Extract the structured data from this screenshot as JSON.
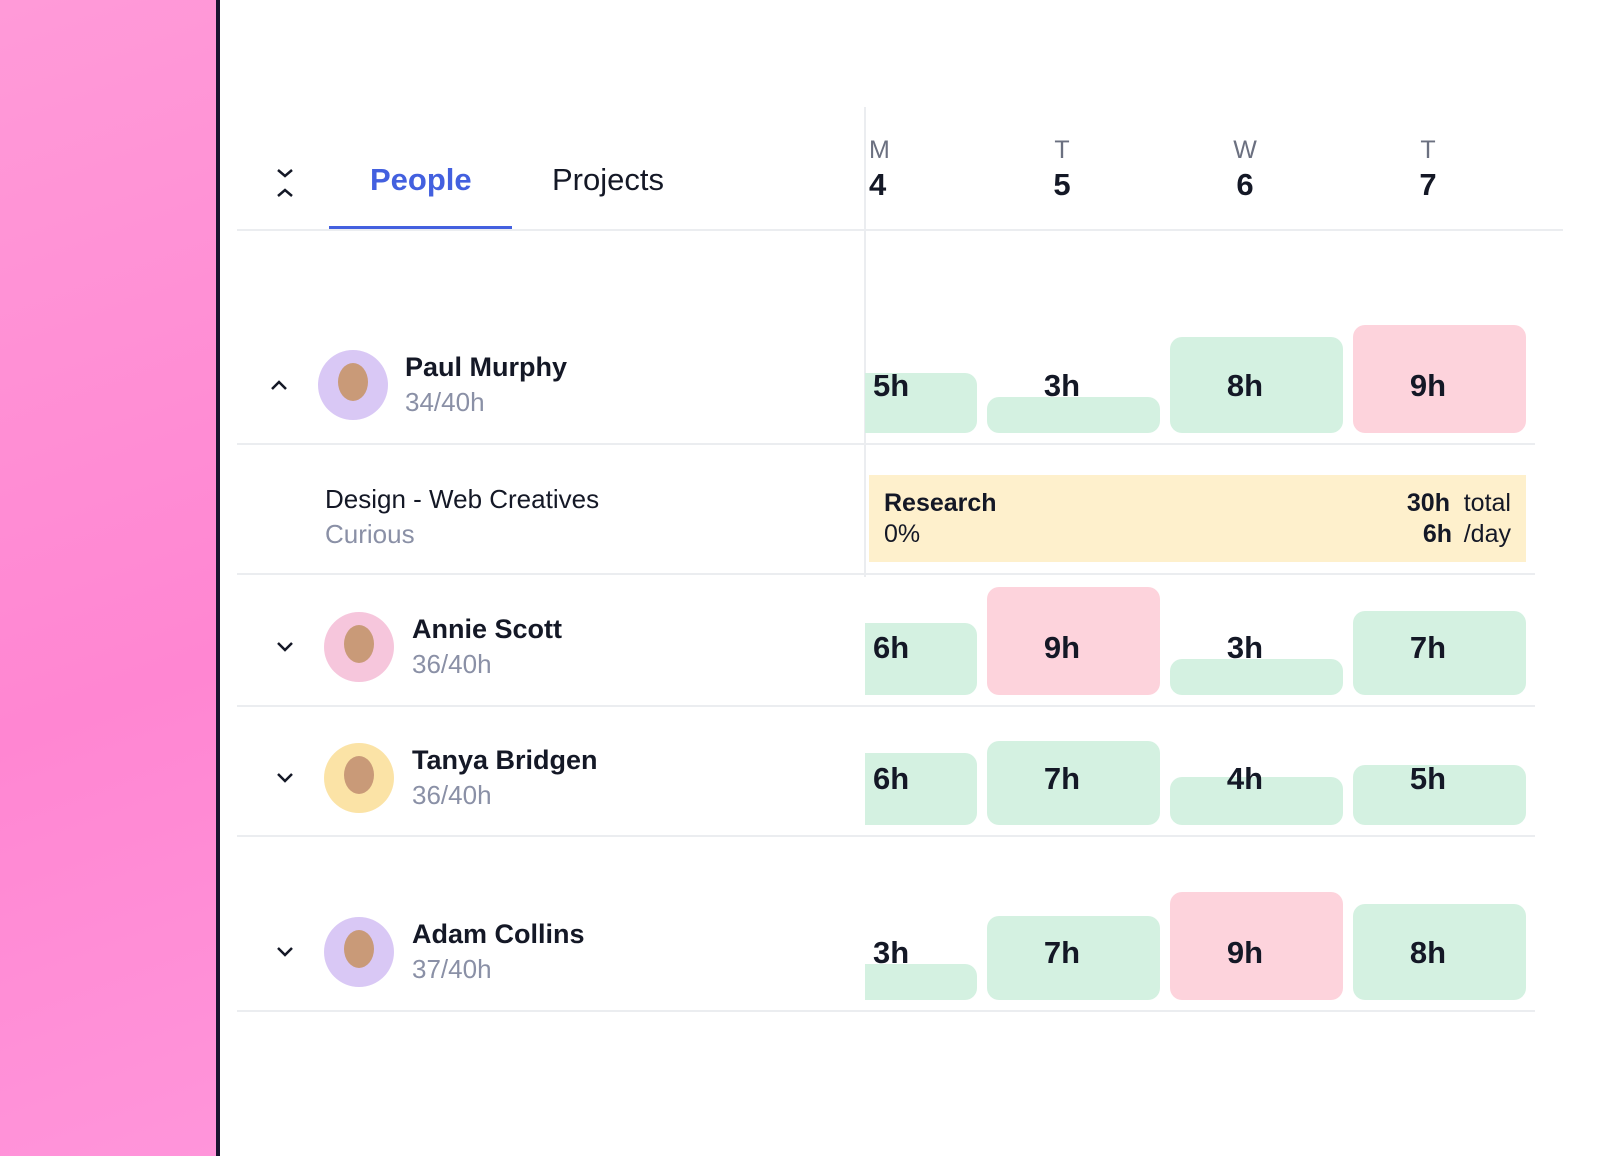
{
  "tabs": [
    "People",
    "Projects"
  ],
  "days": [
    {
      "letter": "M",
      "number": "4"
    },
    {
      "letter": "T",
      "number": "5"
    },
    {
      "letter": "W",
      "number": "6"
    },
    {
      "letter": "T",
      "number": "7"
    }
  ],
  "people": [
    {
      "name": "Paul Murphy",
      "hours": "34/40h",
      "avatar_color": "#d9c8f5",
      "days": [
        {
          "label": "5h",
          "color": "#d4f1e1"
        },
        {
          "label": "3h",
          "color": "#d4f1e1"
        },
        {
          "label": "8h",
          "color": "#d4f1e1"
        },
        {
          "label": "9h",
          "color": "#fdd3dc"
        }
      ]
    },
    {
      "name": "Annie Scott",
      "hours": "36/40h",
      "avatar_color": "#f6c6dc",
      "days": [
        {
          "label": "6h",
          "color": "#d4f1e1"
        },
        {
          "label": "9h",
          "color": "#fdd3dc"
        },
        {
          "label": "3h",
          "color": "#d4f1e1"
        },
        {
          "label": "7h",
          "color": "#d4f1e1"
        }
      ]
    },
    {
      "name": "Tanya Bridgen",
      "hours": "36/40h",
      "avatar_color": "#fbe3a6",
      "days": [
        {
          "label": "6h",
          "color": "#d4f1e1"
        },
        {
          "label": "7h",
          "color": "#d4f1e1"
        },
        {
          "label": "4h",
          "color": "#d4f1e1"
        },
        {
          "label": "5h",
          "color": "#d4f1e1"
        }
      ]
    },
    {
      "name": "Adam Collins",
      "hours": "37/40h",
      "avatar_color": "#d9c8f5",
      "days": [
        {
          "label": "3h",
          "color": "#d4f1e1"
        },
        {
          "label": "7h",
          "color": "#d4f1e1"
        },
        {
          "label": "9h",
          "color": "#fdd3dc"
        },
        {
          "label": "8h",
          "color": "#d4f1e1"
        }
      ]
    }
  ],
  "project": {
    "name": "Design - Web Creatives",
    "client": "Curious",
    "task": "Research",
    "progress": "0%",
    "total": "30h",
    "total_unit": "total",
    "daily": "6h",
    "daily_unit": "/day"
  }
}
